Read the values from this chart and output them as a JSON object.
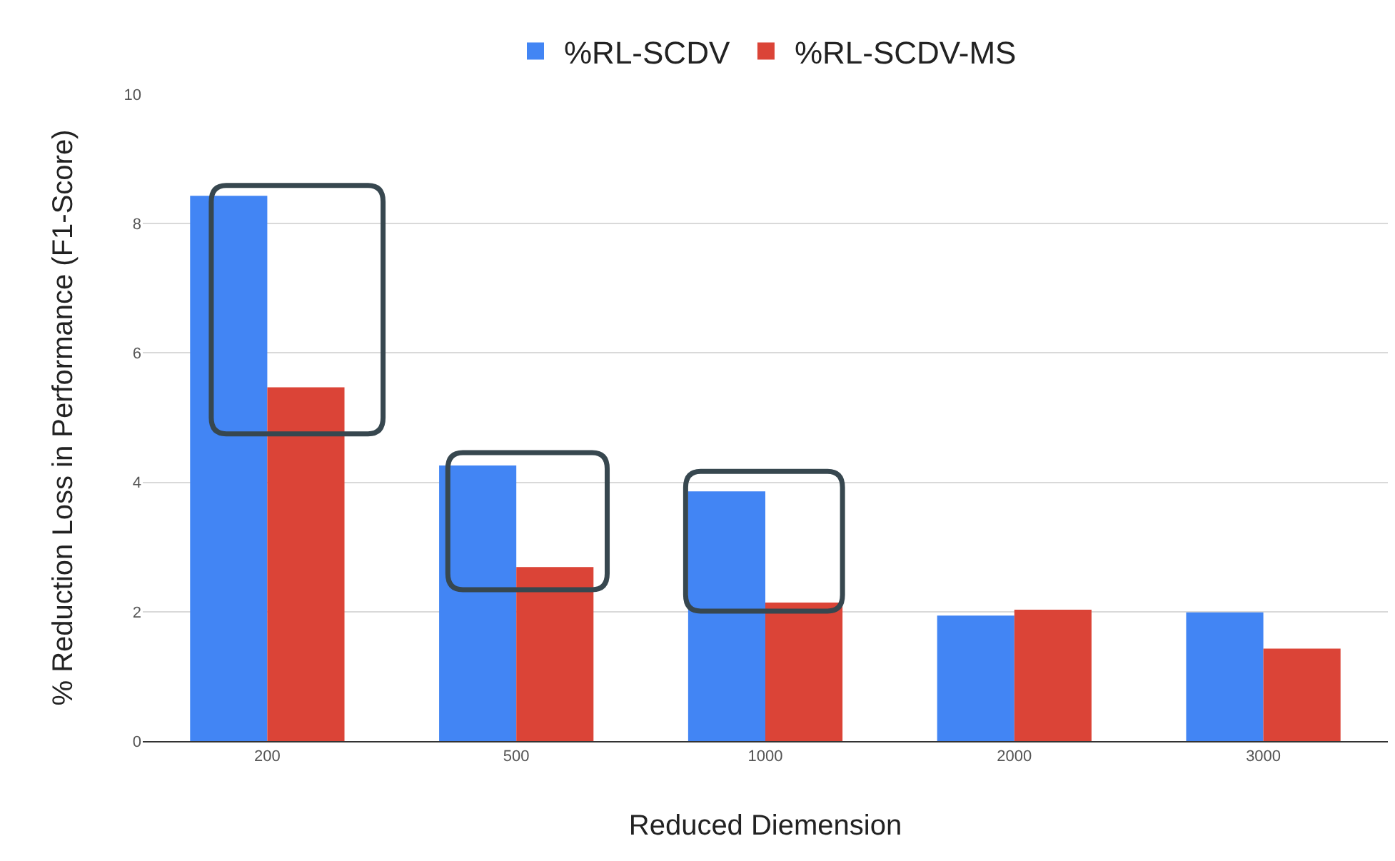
{
  "chart_data": {
    "type": "bar",
    "xlabel": "Reduced Diemension",
    "ylabel": "% Reduction Loss in Performance (F1-Score)",
    "categories": [
      "200",
      "500",
      "1000",
      "2000",
      "3000"
    ],
    "series": [
      {
        "name": "%RL-SCDV",
        "color": "#4285f4",
        "values": [
          8.43,
          4.26,
          3.86,
          1.94,
          1.99
        ]
      },
      {
        "name": "%RL-SCDV-MS",
        "color": "#db4437",
        "values": [
          5.47,
          2.69,
          2.14,
          2.03,
          1.43
        ]
      }
    ],
    "ylim": [
      0,
      10
    ],
    "yticks": [
      0,
      2,
      4,
      6,
      8,
      10
    ],
    "grid": "y",
    "legend": "top"
  }
}
